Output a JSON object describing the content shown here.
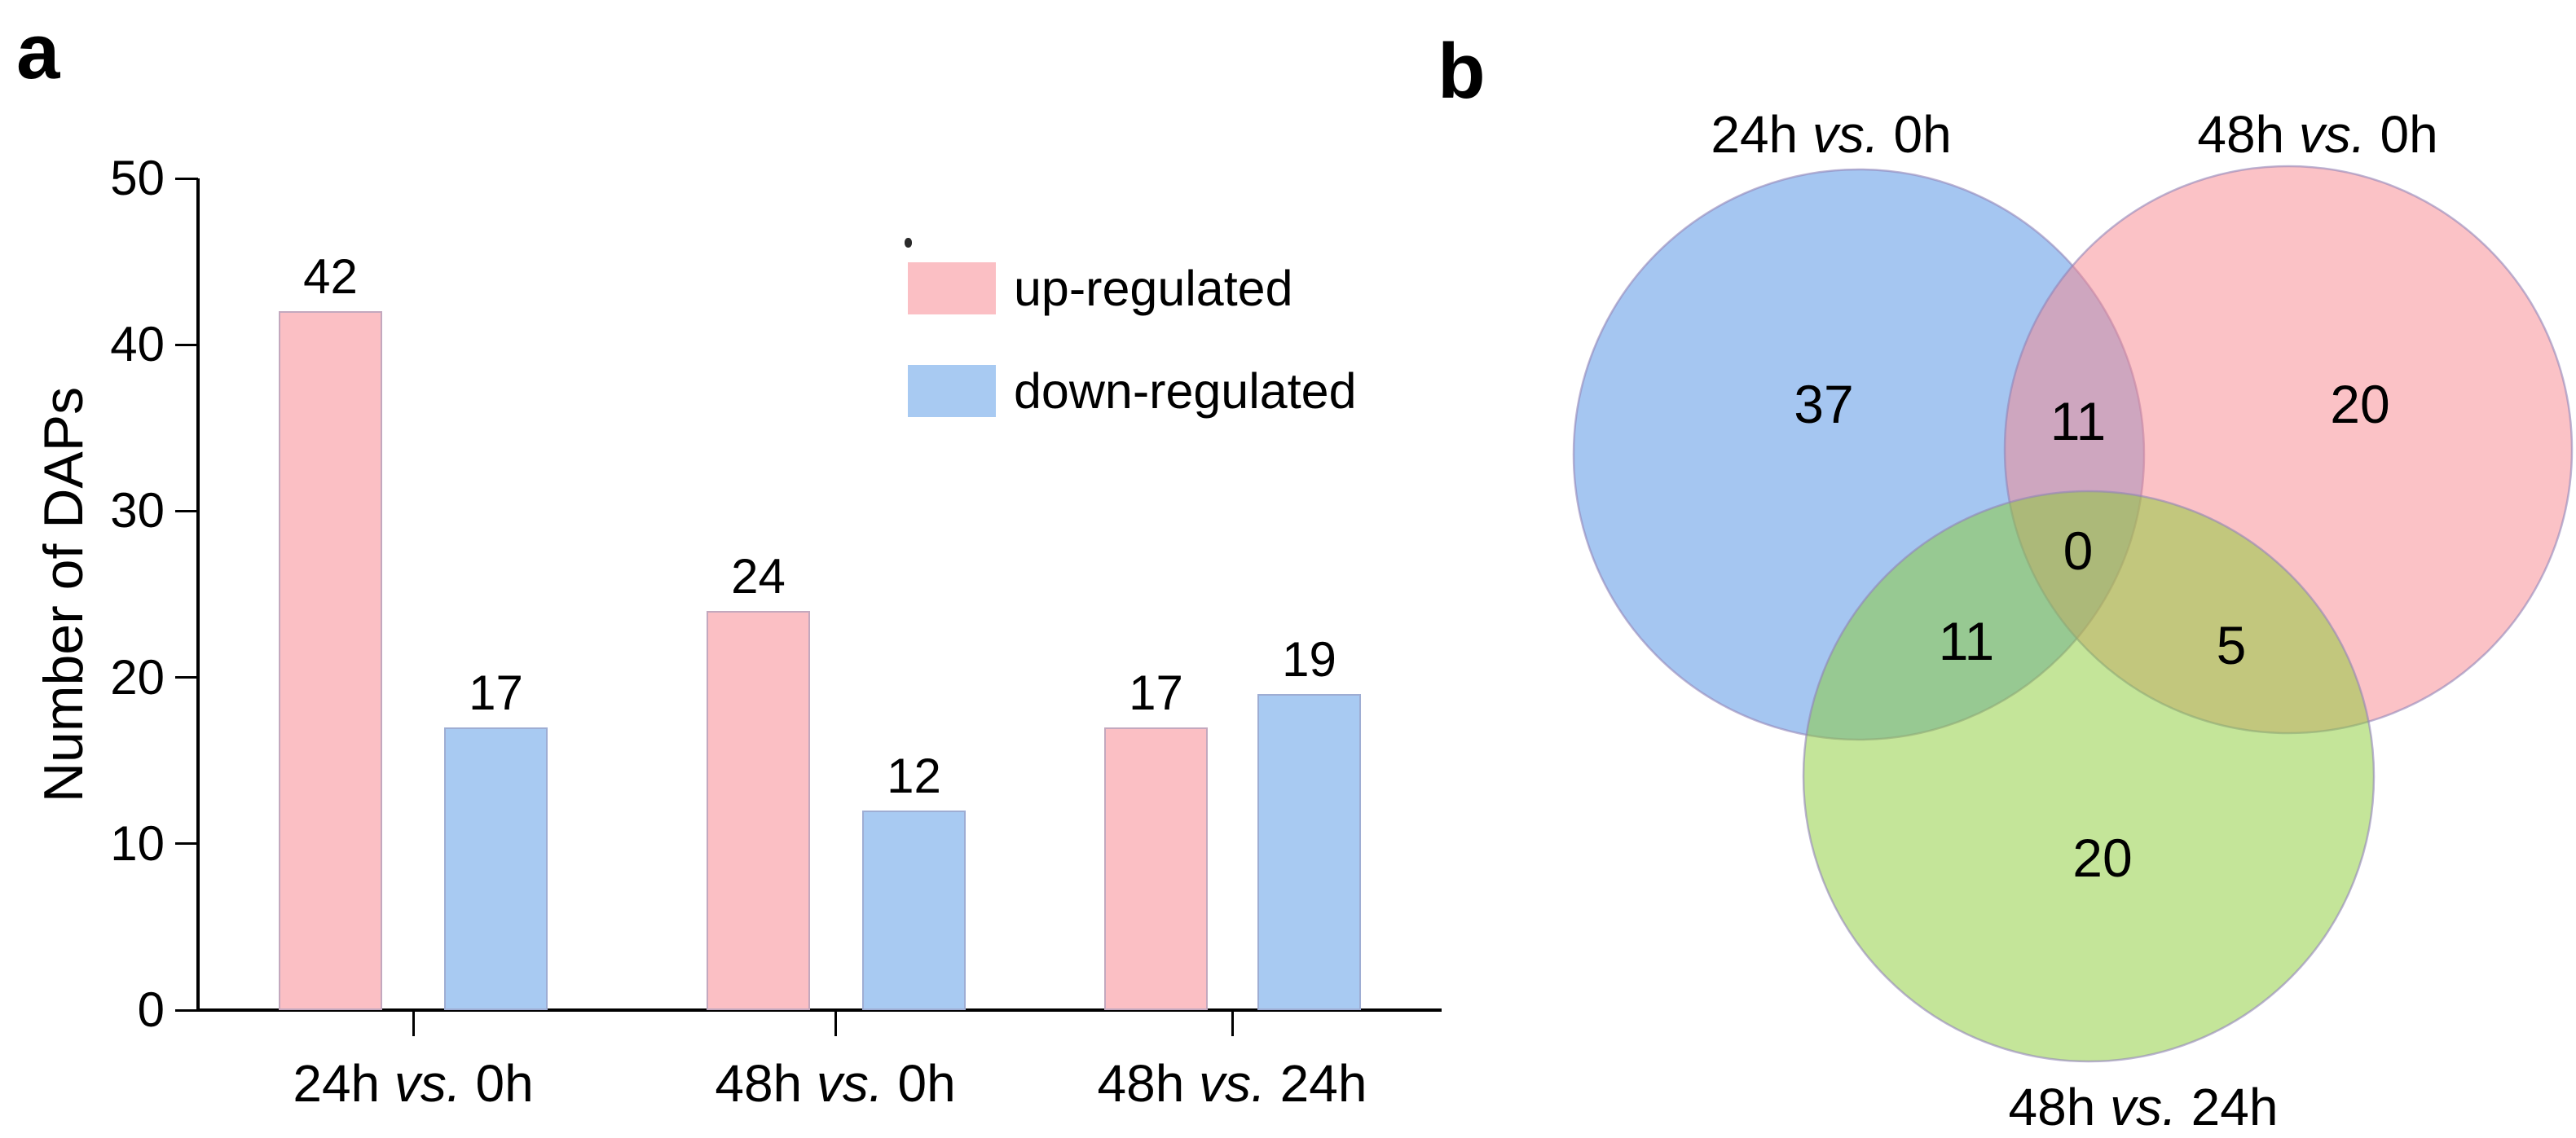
{
  "panels": {
    "a": {
      "label": "a"
    },
    "b": {
      "label": "b"
    }
  },
  "chart_data": [
    {
      "type": "bar",
      "title": "",
      "xlabel": "",
      "ylabel": "Number of DAPs",
      "categories": [
        "24h vs. 0h",
        "48h vs. 0h",
        "48h vs. 24h"
      ],
      "series": [
        {
          "name": "up-regulated",
          "color": "#FBBFC4",
          "values": [
            42,
            24,
            17
          ]
        },
        {
          "name": "down-regulated",
          "color": "#A8CAF2",
          "values": [
            17,
            12,
            19
          ]
        }
      ],
      "bar_value_labels": [
        42,
        17,
        24,
        12,
        17,
        19
      ],
      "ylim": [
        0,
        50
      ],
      "yticks": [
        0,
        10,
        20,
        30,
        40,
        50
      ],
      "grid": false,
      "legend_position": "upper right"
    },
    {
      "type": "venn",
      "sets": [
        {
          "label": "24h vs. 0h",
          "color": "#4B8DE3",
          "fill_opacity": 0.5
        },
        {
          "label": "48h vs. 0h",
          "color": "#F7858D",
          "fill_opacity": 0.5
        },
        {
          "label": "48h vs. 24h",
          "color": "#89CB33",
          "fill_opacity": 0.5
        }
      ],
      "regions": [
        {
          "id": "24v0-only",
          "value": 37
        },
        {
          "id": "24v0-and-48v0",
          "value": 11
        },
        {
          "id": "48v0-only",
          "value": 20
        },
        {
          "id": "all-three",
          "value": 0
        },
        {
          "id": "24v0-and-48v24",
          "value": 11
        },
        {
          "id": "48v0-and-48v24",
          "value": 5
        },
        {
          "id": "48v24-only",
          "value": 20
        }
      ]
    }
  ]
}
